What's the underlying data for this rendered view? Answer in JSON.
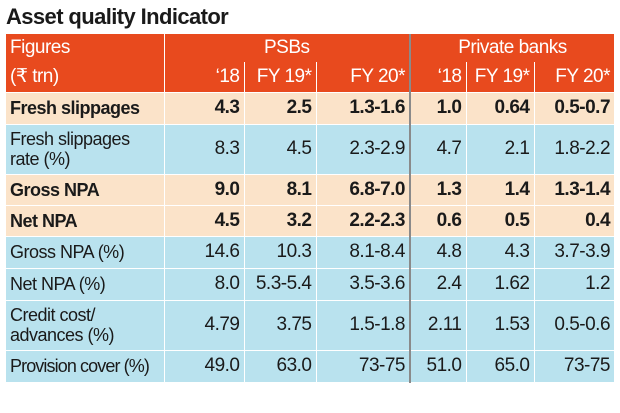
{
  "title": "Asset quality Indicator",
  "header": {
    "label_line1": "Figures",
    "label_line2": "(₹ trn)",
    "groups": [
      "PSBs",
      "Private banks"
    ],
    "columns": [
      "‘18",
      "FY 19*",
      "FY 20*",
      "‘18",
      "FY 19*",
      "FY 20*"
    ]
  },
  "rows": [
    {
      "label": "Fresh slippages",
      "psb_18": "4.3",
      "psb_fy19": "2.5",
      "psb_fy20": "1.3-1.6",
      "pvt_18": "1.0",
      "pvt_fy19": "0.64",
      "pvt_fy20": "0.5-0.7"
    },
    {
      "label": "Fresh slippages rate (%)",
      "psb_18": "8.3",
      "psb_fy19": "4.5",
      "psb_fy20": "2.3-2.9",
      "pvt_18": "4.7",
      "pvt_fy19": "2.1",
      "pvt_fy20": "1.8-2.2"
    },
    {
      "label": "Gross NPA",
      "psb_18": "9.0",
      "psb_fy19": "8.1",
      "psb_fy20": "6.8-7.0",
      "pvt_18": "1.3",
      "pvt_fy19": "1.4",
      "pvt_fy20": "1.3-1.4"
    },
    {
      "label": "Net NPA",
      "psb_18": "4.5",
      "psb_fy19": "3.2",
      "psb_fy20": "2.2-2.3",
      "pvt_18": "0.6",
      "pvt_fy19": "0.5",
      "pvt_fy20": "0.4"
    },
    {
      "label": "Gross NPA (%)",
      "psb_18": "14.6",
      "psb_fy19": "10.3",
      "psb_fy20": "8.1-8.4",
      "pvt_18": "4.8",
      "pvt_fy19": "4.3",
      "pvt_fy20": "3.7-3.9"
    },
    {
      "label": "Net NPA (%)",
      "psb_18": "8.0",
      "psb_fy19": "5.3-5.4",
      "psb_fy20": "3.5-3.6",
      "pvt_18": "2.4",
      "pvt_fy19": "1.62",
      "pvt_fy20": "1.2"
    },
    {
      "label": "Credit cost/ advances (%)",
      "psb_18": "4.79",
      "psb_fy19": "3.75",
      "psb_fy20": "1.5-1.8",
      "pvt_18": "2.11",
      "pvt_fy19": "1.53",
      "pvt_fy20": "0.5-0.6"
    },
    {
      "label": "Provision cover (%)",
      "psb_18": "49.0",
      "psb_fy19": "63.0",
      "psb_fy20": "73-75",
      "pvt_18": "51.0",
      "pvt_fy19": "65.0",
      "pvt_fy20": "73-75"
    }
  ],
  "colors": {
    "header": "#e84a1e",
    "row_tan": "#fbe3c9",
    "row_blue": "#b9e2ee",
    "separator": "#8a8a8a"
  }
}
